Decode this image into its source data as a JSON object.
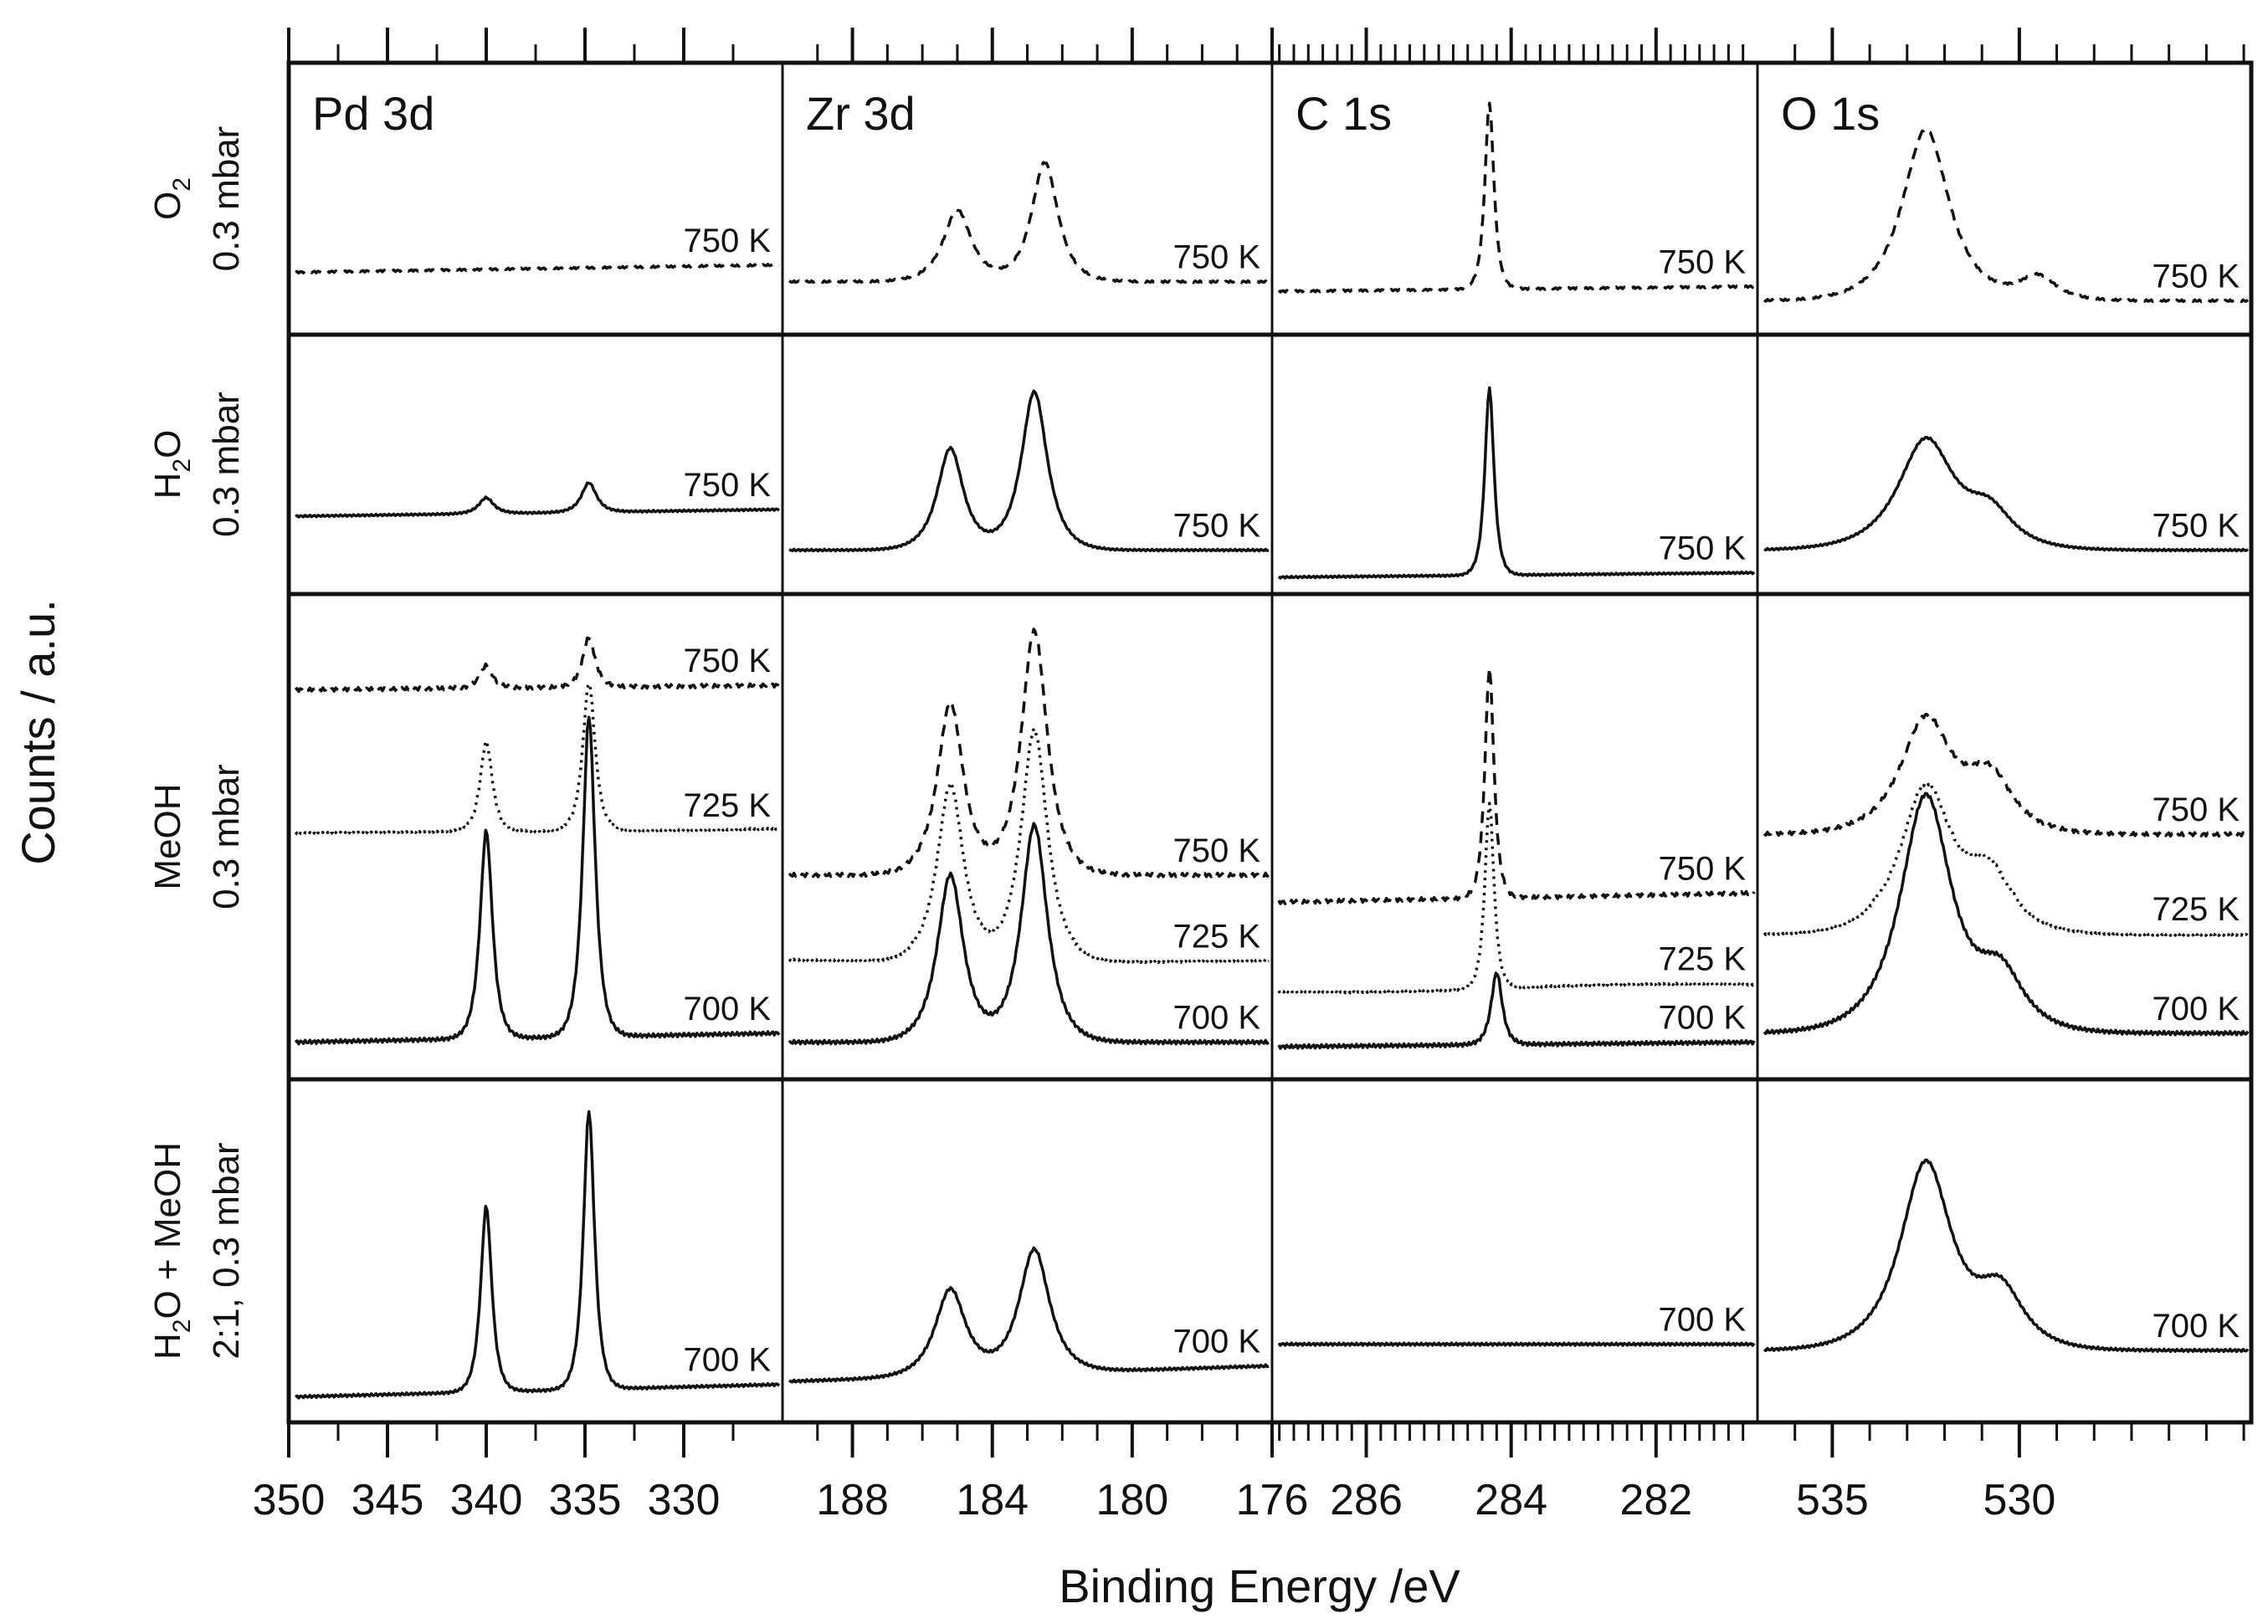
{
  "chart_data": {
    "type": "line",
    "title": "",
    "xlabel": "Binding Energy /eV",
    "ylabel": "Counts / a.u.",
    "columns": [
      {
        "id": "pd",
        "title": "Pd 3d",
        "xlim": [
          350,
          325
        ],
        "ticks": [
          350,
          345,
          340,
          335,
          330
        ],
        "minor": []
      },
      {
        "id": "zr",
        "title": "Zr 3d",
        "xlim": [
          190,
          176
        ],
        "ticks": [
          188,
          184,
          180,
          176
        ],
        "minor": []
      },
      {
        "id": "c",
        "title": "C 1s",
        "xlim": [
          287.3,
          280.6
        ],
        "ticks": [
          286,
          284,
          282
        ],
        "minor": []
      },
      {
        "id": "o",
        "title": "O 1s",
        "xlim": [
          537,
          523.8
        ],
        "ticks": [
          535,
          530
        ],
        "minor": []
      }
    ],
    "rows": [
      {
        "id": "o2",
        "label": "O",
        "label_sub": "2",
        "label2": "0.3 mbar"
      },
      {
        "id": "h2o",
        "label": "H",
        "label_sub": "2",
        "label_after": "O",
        "label2": "0.3 mbar"
      },
      {
        "id": "meoh",
        "label": "MeOH",
        "label2": "0.3 mbar"
      },
      {
        "id": "mix",
        "label": "H",
        "label_sub": "2",
        "label_after": "O + MeOH",
        "label2": "2:1, 0.3 mbar"
      }
    ],
    "series": [
      {
        "row": 0,
        "col": 0,
        "name": "750 K",
        "style": "dashed",
        "label": "750 K",
        "base": 0.22,
        "slope": 0.03,
        "peaks": []
      },
      {
        "row": 0,
        "col": 1,
        "name": "750 K",
        "style": "dashed",
        "label": "750 K",
        "base": 0.18,
        "slope": 0.0,
        "peaks": [
          [
            185.0,
            0.3,
            0.65
          ],
          [
            182.5,
            0.5,
            0.6
          ]
        ]
      },
      {
        "row": 0,
        "col": 2,
        "name": "750 K",
        "style": "dashed",
        "label": "750 K",
        "base": 0.14,
        "slope": 0.02,
        "peaks": [
          [
            284.3,
            0.78,
            0.1
          ]
        ]
      },
      {
        "row": 0,
        "col": 3,
        "name": "750 K",
        "style": "dashed",
        "label": "750 K",
        "base": 0.1,
        "slope": 0.0,
        "peaks": [
          [
            532.5,
            0.72,
            1.0
          ],
          [
            529.5,
            0.1,
            0.8
          ]
        ]
      },
      {
        "row": 1,
        "col": 0,
        "name": "750 K",
        "style": "solid",
        "label": "750 K",
        "base": 0.3,
        "slope": 0.03,
        "peaks": [
          [
            340.0,
            0.07,
            0.6
          ],
          [
            334.8,
            0.13,
            0.6
          ]
        ]
      },
      {
        "row": 1,
        "col": 1,
        "name": "750 K",
        "style": "solid",
        "label": "750 K",
        "base": 0.15,
        "slope": 0.0,
        "peaks": [
          [
            185.2,
            0.45,
            0.6
          ],
          [
            182.8,
            0.7,
            0.6
          ]
        ]
      },
      {
        "row": 1,
        "col": 2,
        "name": "750 K",
        "style": "solid",
        "label": "750 K",
        "base": 0.03,
        "slope": 0.02,
        "peaks": [
          [
            284.3,
            0.83,
            0.1
          ]
        ]
      },
      {
        "row": 1,
        "col": 3,
        "name": "750 K",
        "style": "solid",
        "label": "750 K",
        "base": 0.15,
        "slope": 0.0,
        "peaks": [
          [
            532.5,
            0.48,
            1.2
          ],
          [
            530.8,
            0.15,
            1.0
          ]
        ]
      },
      {
        "row": 2,
        "col": 0,
        "name": "750 K",
        "style": "dashed",
        "label": "750 K",
        "base": 0.84,
        "slope": 0.01,
        "peaks": [
          [
            340.0,
            0.05,
            0.5
          ],
          [
            334.8,
            0.11,
            0.5
          ]
        ]
      },
      {
        "row": 2,
        "col": 0,
        "name": "725 K",
        "style": "dotted",
        "label": "725 K",
        "base": 0.52,
        "slope": 0.01,
        "peaks": [
          [
            340.0,
            0.2,
            0.5
          ],
          [
            334.8,
            0.33,
            0.5
          ]
        ]
      },
      {
        "row": 2,
        "col": 0,
        "name": "700 K",
        "style": "solid",
        "label": "700 K",
        "base": 0.06,
        "slope": 0.02,
        "peaks": [
          [
            340.0,
            0.46,
            0.5
          ],
          [
            334.8,
            0.71,
            0.5
          ]
        ]
      },
      {
        "row": 2,
        "col": 1,
        "name": "750 K",
        "style": "dashed",
        "label": "750 K",
        "base": 0.43,
        "slope": 0.0,
        "peaks": [
          [
            185.2,
            0.38,
            0.6
          ],
          [
            182.8,
            0.54,
            0.6
          ]
        ]
      },
      {
        "row": 2,
        "col": 1,
        "name": "725 K",
        "style": "dotted",
        "label": "725 K",
        "base": 0.24,
        "slope": 0.0,
        "peaks": [
          [
            185.2,
            0.39,
            0.6
          ],
          [
            182.8,
            0.51,
            0.6
          ]
        ]
      },
      {
        "row": 2,
        "col": 1,
        "name": "700 K",
        "style": "solid",
        "label": "700 K",
        "base": 0.06,
        "slope": 0.0,
        "peaks": [
          [
            185.2,
            0.37,
            0.6
          ],
          [
            182.8,
            0.48,
            0.6
          ]
        ]
      },
      {
        "row": 2,
        "col": 2,
        "name": "750 K",
        "style": "dashed",
        "label": "750 K",
        "base": 0.37,
        "slope": 0.02,
        "peaks": [
          [
            284.3,
            0.51,
            0.1
          ]
        ]
      },
      {
        "row": 2,
        "col": 2,
        "name": "725 K",
        "style": "dotted",
        "label": "725 K",
        "base": 0.17,
        "slope": 0.02,
        "peaks": [
          [
            284.3,
            0.41,
            0.1
          ]
        ]
      },
      {
        "row": 2,
        "col": 2,
        "name": "700 K",
        "style": "solid",
        "label": "700 K",
        "base": 0.05,
        "slope": 0.01,
        "peaks": [
          [
            284.2,
            0.16,
            0.12
          ]
        ]
      },
      {
        "row": 2,
        "col": 3,
        "name": "750 K",
        "style": "dashed",
        "label": "750 K",
        "base": 0.52,
        "slope": 0.0,
        "peaks": [
          [
            532.5,
            0.25,
            1.1
          ],
          [
            530.8,
            0.12,
            1.0
          ]
        ]
      },
      {
        "row": 2,
        "col": 3,
        "name": "725 K",
        "style": "dotted",
        "label": "725 K",
        "base": 0.3,
        "slope": 0.0,
        "peaks": [
          [
            532.5,
            0.32,
            1.1
          ],
          [
            530.8,
            0.12,
            1.0
          ]
        ]
      },
      {
        "row": 2,
        "col": 3,
        "name": "700 K",
        "style": "solid",
        "label": "700 K",
        "base": 0.08,
        "slope": 0.0,
        "peaks": [
          [
            532.5,
            0.52,
            1.1
          ],
          [
            530.5,
            0.12,
            1.0
          ]
        ]
      },
      {
        "row": 3,
        "col": 0,
        "name": "700 K",
        "style": "solid",
        "label": "700 K",
        "base": 0.05,
        "slope": 0.04,
        "peaks": [
          [
            340.0,
            0.6,
            0.45
          ],
          [
            334.8,
            0.9,
            0.45
          ]
        ]
      },
      {
        "row": 3,
        "col": 1,
        "name": "700 K",
        "style": "solid",
        "label": "700 K",
        "base": 0.1,
        "slope": 0.05,
        "peaks": [
          [
            185.2,
            0.28,
            0.7
          ],
          [
            182.8,
            0.4,
            0.7
          ]
        ]
      },
      {
        "row": 3,
        "col": 2,
        "name": "700 K",
        "style": "solid",
        "label": "700 K",
        "base": 0.22,
        "slope": 0.0,
        "peaks": []
      },
      {
        "row": 3,
        "col": 3,
        "name": "700 K",
        "style": "solid",
        "label": "700 K",
        "base": 0.2,
        "slope": 0.0,
        "peaks": [
          [
            532.5,
            0.6,
            1.1
          ],
          [
            530.5,
            0.18,
            1.0
          ]
        ]
      }
    ]
  }
}
